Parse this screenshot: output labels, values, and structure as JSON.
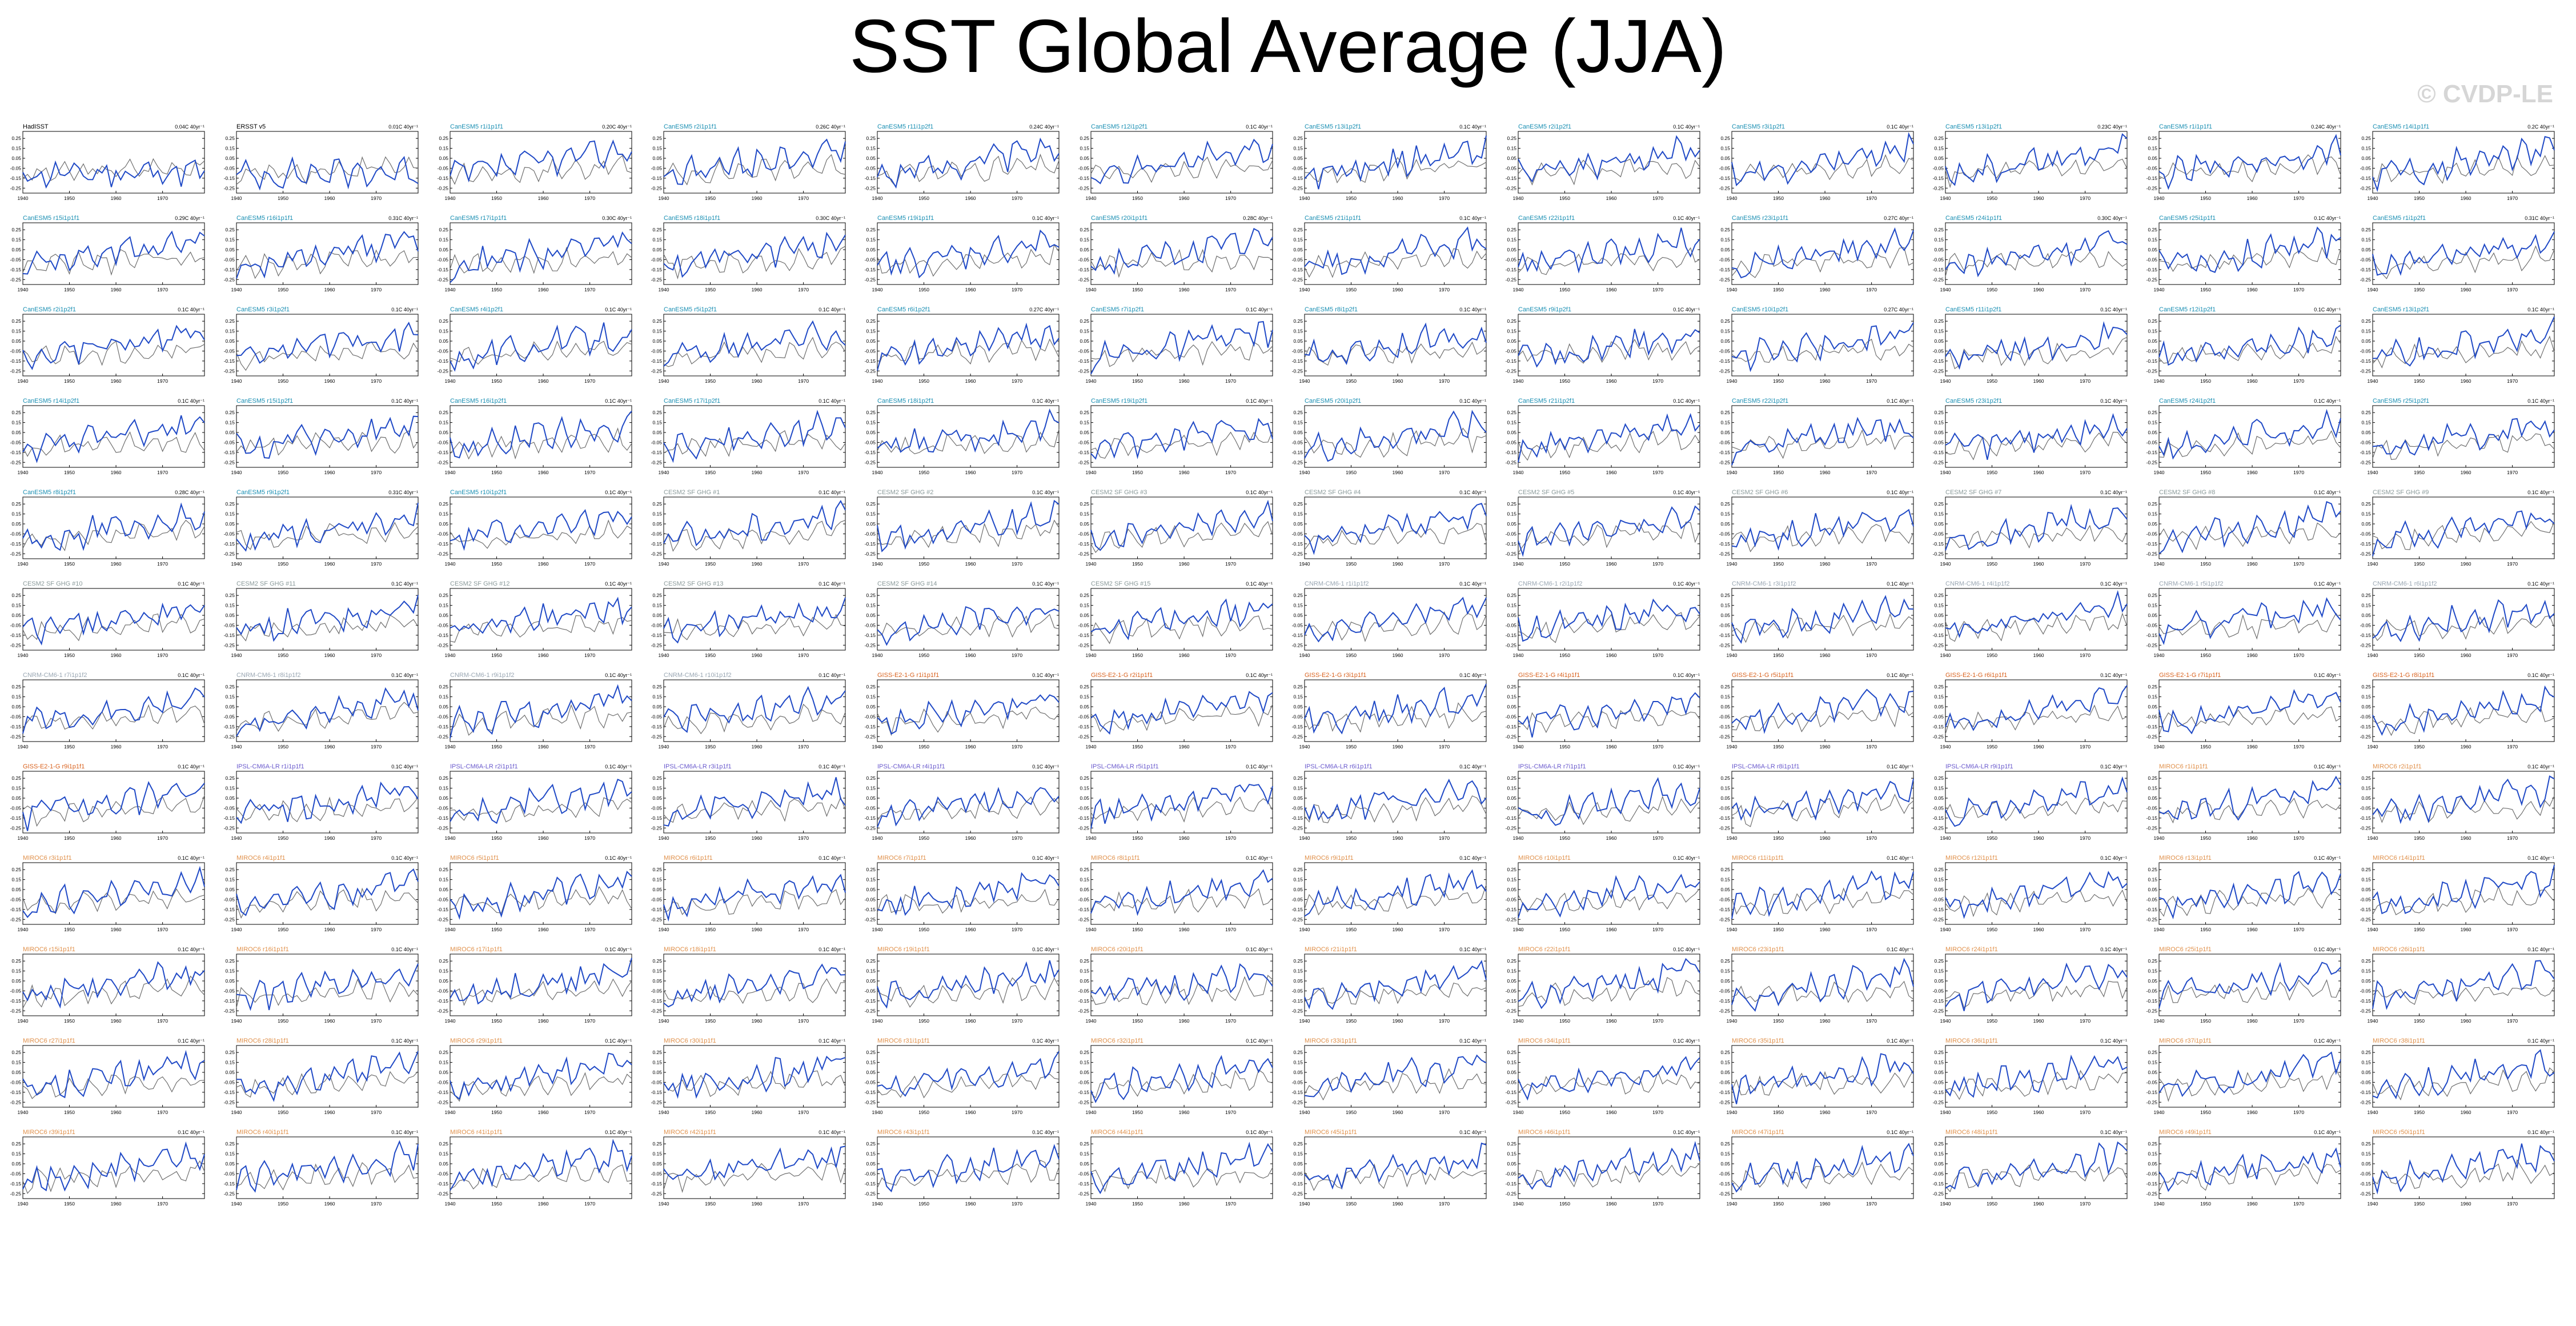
{
  "title": "SST Global Average (JJA)",
  "watermark": "© CVDP-LE",
  "colors": {
    "observation_line": "#1f49c6",
    "reference_line": "#6e6e6e",
    "frame": "#000000",
    "title_obs": "#000000",
    "title_cesm": "#1a8fb3",
    "title_cesm_sf": "#8a9a9a",
    "title_cnrm": "#9aa7b3",
    "title_giss": "#d9621e",
    "title_ipsl": "#6a5acd",
    "title_miroc": "#e0904a"
  },
  "chart_data": {
    "type": "line",
    "layout_note": "small multiples",
    "x": [
      1940,
      1941,
      1942,
      1943,
      1944,
      1945,
      1946,
      1947,
      1948,
      1949,
      1950,
      1951,
      1952,
      1953,
      1954,
      1955,
      1956,
      1957,
      1958,
      1959,
      1960,
      1961,
      1962,
      1963,
      1964,
      1965,
      1966,
      1967,
      1968,
      1969,
      1970,
      1971,
      1972,
      1973,
      1974,
      1975,
      1976,
      1977,
      1978,
      1979
    ],
    "x_ticks": [
      "1940",
      "1950",
      "1960",
      "1970"
    ],
    "y_ticks": [
      "0.25",
      "0.15",
      "0.05",
      "-0.05",
      "-0.15",
      "-0.25"
    ],
    "ylim": [
      -0.3,
      0.32
    ],
    "panels": [
      {
        "title": "HadISST",
        "trend": "0.04C 40yr⁻¹",
        "group": "obs"
      },
      {
        "title": "ERSST v5",
        "trend": "0.01C 40yr⁻¹",
        "group": "obs"
      },
      {
        "title": "CanESM5 r1i1p1f1",
        "trend": "0.20C 40yr⁻¹",
        "group": "cesm"
      },
      {
        "title": "CanESM5 r2i1p1f1",
        "trend": "0.26C 40yr⁻¹",
        "group": "cesm"
      },
      {
        "title": "CanESM5 r11i1p2f1",
        "trend": "0.24C 40yr⁻¹",
        "group": "cesm"
      },
      {
        "title": "CanESM5 r12i1p2f1",
        "trend": "0.1C 40yr⁻¹",
        "group": "cesm"
      },
      {
        "title": "CanESM5 r13i1p2f1",
        "trend": "0.1C 40yr⁻¹",
        "group": "cesm"
      },
      {
        "title": "CanESM5 r2i1p2f1",
        "trend": "0.1C 40yr⁻¹",
        "group": "cesm"
      },
      {
        "title": "CanESM5 r3i1p2f1",
        "trend": "0.1C 40yr⁻¹",
        "group": "cesm"
      },
      {
        "title": "CanESM5 r13i1p2f1",
        "trend": "0.23C 40yr⁻¹",
        "group": "cesm"
      },
      {
        "title": "CanESM5 r1i1p1f1",
        "trend": "0.24C 40yr⁻¹",
        "group": "cesm"
      },
      {
        "title": "CanESM5 r14i1p1f1",
        "trend": "0.2C 40yr⁻¹",
        "group": "cesm"
      },
      {
        "title": "CanESM5 r15i1p1f1",
        "trend": "0.29C 40yr⁻¹",
        "group": "cesm"
      },
      {
        "title": "CanESM5 r16i1p1f1",
        "trend": "0.31C 40yr⁻¹",
        "group": "cesm"
      },
      {
        "title": "CanESM5 r17i1p1f1",
        "trend": "0.30C 40yr⁻¹",
        "group": "cesm"
      },
      {
        "title": "CanESM5 r18i1p1f1",
        "trend": "0.30C 40yr⁻¹",
        "group": "cesm"
      },
      {
        "title": "CanESM5 r19i1p1f1",
        "trend": "0.1C 40yr⁻¹",
        "group": "cesm"
      },
      {
        "title": "CanESM5 r20i1p1f1",
        "trend": "0.28C 40yr⁻¹",
        "group": "cesm"
      },
      {
        "title": "CanESM5 r21i1p1f1",
        "trend": "0.1C 40yr⁻¹",
        "group": "cesm"
      },
      {
        "title": "CanESM5 r22i1p1f1",
        "trend": "0.1C 40yr⁻¹",
        "group": "cesm"
      },
      {
        "title": "CanESM5 r23i1p1f1",
        "trend": "0.27C 40yr⁻¹",
        "group": "cesm"
      },
      {
        "title": "CanESM5 r24i1p1f1",
        "trend": "0.30C 40yr⁻¹",
        "group": "cesm"
      },
      {
        "title": "CanESM5 r25i1p1f1",
        "trend": "0.1C 40yr⁻¹",
        "group": "cesm"
      },
      {
        "title": "CanESM5 r1i1p2f1",
        "trend": "0.31C 40yr⁻¹",
        "group": "cesm"
      },
      {
        "title": "CanESM5 r2i1p2f1",
        "trend": "0.1C 40yr⁻¹",
        "group": "cesm"
      },
      {
        "title": "CanESM5 r3i1p2f1",
        "trend": "0.1C 40yr⁻¹",
        "group": "cesm"
      },
      {
        "title": "CanESM5 r4i1p2f1",
        "trend": "0.1C 40yr⁻¹",
        "group": "cesm"
      },
      {
        "title": "CanESM5 r5i1p2f1",
        "trend": "0.1C 40yr⁻¹",
        "group": "cesm"
      },
      {
        "title": "CanESM5 r6i1p2f1",
        "trend": "0.27C 40yr⁻¹",
        "group": "cesm"
      },
      {
        "title": "CanESM5 r7i1p2f1",
        "trend": "0.1C 40yr⁻¹",
        "group": "cesm"
      },
      {
        "title": "CanESM5 r8i1p2f1",
        "trend": "0.1C 40yr⁻¹",
        "group": "cesm"
      },
      {
        "title": "CanESM5 r9i1p2f1",
        "trend": "0.1C 40yr⁻¹",
        "group": "cesm"
      },
      {
        "title": "CanESM5 r10i1p2f1",
        "trend": "0.27C 40yr⁻¹",
        "group": "cesm"
      },
      {
        "title": "CanESM5 r11i1p2f1",
        "trend": "0.1C 40yr⁻¹",
        "group": "cesm"
      },
      {
        "title": "CanESM5 r12i1p2f1",
        "trend": "0.1C 40yr⁻¹",
        "group": "cesm"
      },
      {
        "title": "CanESM5 r13i1p2f1",
        "trend": "0.1C 40yr⁻¹",
        "group": "cesm"
      },
      {
        "title": "CanESM5 r14i1p2f1",
        "trend": "0.1C 40yr⁻¹",
        "group": "cesm"
      },
      {
        "title": "CanESM5 r15i1p2f1",
        "trend": "0.1C 40yr⁻¹",
        "group": "cesm"
      },
      {
        "title": "CanESM5 r16i1p2f1",
        "trend": "0.1C 40yr⁻¹",
        "group": "cesm"
      },
      {
        "title": "CanESM5 r17i1p2f1",
        "trend": "0.1C 40yr⁻¹",
        "group": "cesm"
      },
      {
        "title": "CanESM5 r18i1p2f1",
        "trend": "0.1C 40yr⁻¹",
        "group": "cesm"
      },
      {
        "title": "CanESM5 r19i1p2f1",
        "trend": "0.1C 40yr⁻¹",
        "group": "cesm"
      },
      {
        "title": "CanESM5 r20i1p2f1",
        "trend": "0.1C 40yr⁻¹",
        "group": "cesm"
      },
      {
        "title": "CanESM5 r21i1p2f1",
        "trend": "0.1C 40yr⁻¹",
        "group": "cesm"
      },
      {
        "title": "CanESM5 r22i1p2f1",
        "trend": "0.1C 40yr⁻¹",
        "group": "cesm"
      },
      {
        "title": "CanESM5 r23i1p2f1",
        "trend": "0.1C 40yr⁻¹",
        "group": "cesm"
      },
      {
        "title": "CanESM5 r24i1p2f1",
        "trend": "0.1C 40yr⁻¹",
        "group": "cesm"
      },
      {
        "title": "CanESM5 r25i1p2f1",
        "trend": "0.1C 40yr⁻¹",
        "group": "cesm"
      },
      {
        "title": "CanESM5 r8i1p2f1",
        "trend": "0.28C 40yr⁻¹",
        "group": "cesm"
      },
      {
        "title": "CanESM5 r9i1p2f1",
        "trend": "0.31C 40yr⁻¹",
        "group": "cesm"
      },
      {
        "title": "CanESM5 r10i1p2f1",
        "trend": "0.1C 40yr⁻¹",
        "group": "cesm"
      },
      {
        "title": "CESM2 SF GHG #1",
        "trend": "0.1C 40yr⁻¹",
        "group": "cesm_sf"
      },
      {
        "title": "CESM2 SF GHG #2",
        "trend": "0.1C 40yr⁻¹",
        "group": "cesm_sf"
      },
      {
        "title": "CESM2 SF GHG #3",
        "trend": "0.1C 40yr⁻¹",
        "group": "cesm_sf"
      },
      {
        "title": "CESM2 SF GHG #4",
        "trend": "0.1C 40yr⁻¹",
        "group": "cesm_sf"
      },
      {
        "title": "CESM2 SF GHG #5",
        "trend": "0.1C 40yr⁻¹",
        "group": "cesm_sf"
      },
      {
        "title": "CESM2 SF GHG #6",
        "trend": "0.1C 40yr⁻¹",
        "group": "cesm_sf"
      },
      {
        "title": "CESM2 SF GHG #7",
        "trend": "0.1C 40yr⁻¹",
        "group": "cesm_sf"
      },
      {
        "title": "CESM2 SF GHG #8",
        "trend": "0.1C 40yr⁻¹",
        "group": "cesm_sf"
      },
      {
        "title": "CESM2 SF GHG #9",
        "trend": "0.1C 40yr⁻¹",
        "group": "cesm_sf"
      },
      {
        "title": "CESM2 SF GHG #10",
        "trend": "0.1C 40yr⁻¹",
        "group": "cesm_sf"
      },
      {
        "title": "CESM2 SF GHG #11",
        "trend": "0.1C 40yr⁻¹",
        "group": "cesm_sf"
      },
      {
        "title": "CESM2 SF GHG #12",
        "trend": "0.1C 40yr⁻¹",
        "group": "cesm_sf"
      },
      {
        "title": "CESM2 SF GHG #13",
        "trend": "0.1C 40yr⁻¹",
        "group": "cesm_sf"
      },
      {
        "title": "CESM2 SF GHG #14",
        "trend": "0.1C 40yr⁻¹",
        "group": "cesm_sf"
      },
      {
        "title": "CESM2 SF GHG #15",
        "trend": "0.1C 40yr⁻¹",
        "group": "cesm_sf"
      },
      {
        "title": "CNRM-CM6-1 r1i1p1f2",
        "trend": "0.1C 40yr⁻¹",
        "group": "cnrm"
      },
      {
        "title": "CNRM-CM6-1 r2i1p1f2",
        "trend": "0.1C 40yr⁻¹",
        "group": "cnrm"
      },
      {
        "title": "CNRM-CM6-1 r3i1p1f2",
        "trend": "0.1C 40yr⁻¹",
        "group": "cnrm"
      },
      {
        "title": "CNRM-CM6-1 r4i1p1f2",
        "trend": "0.1C 40yr⁻¹",
        "group": "cnrm"
      },
      {
        "title": "CNRM-CM6-1 r5i1p1f2",
        "trend": "0.1C 40yr⁻¹",
        "group": "cnrm"
      },
      {
        "title": "CNRM-CM6-1 r6i1p1f2",
        "trend": "0.1C 40yr⁻¹",
        "group": "cnrm"
      },
      {
        "title": "CNRM-CM6-1 r7i1p1f2",
        "trend": "0.1C 40yr⁻¹",
        "group": "cnrm"
      },
      {
        "title": "CNRM-CM6-1 r8i1p1f2",
        "trend": "0.1C 40yr⁻¹",
        "group": "cnrm"
      },
      {
        "title": "CNRM-CM6-1 r9i1p1f2",
        "trend": "0.1C 40yr⁻¹",
        "group": "cnrm"
      },
      {
        "title": "CNRM-CM6-1 r10i1p1f2",
        "trend": "0.1C 40yr⁻¹",
        "group": "cnrm"
      },
      {
        "title": "GISS-E2-1-G r1i1p1f1",
        "trend": "0.1C 40yr⁻¹",
        "group": "giss"
      },
      {
        "title": "GISS-E2-1-G r2i1p1f1",
        "trend": "0.1C 40yr⁻¹",
        "group": "giss"
      },
      {
        "title": "GISS-E2-1-G r3i1p1f1",
        "trend": "0.1C 40yr⁻¹",
        "group": "giss"
      },
      {
        "title": "GISS-E2-1-G r4i1p1f1",
        "trend": "0.1C 40yr⁻¹",
        "group": "giss"
      },
      {
        "title": "GISS-E2-1-G r5i1p1f1",
        "trend": "0.1C 40yr⁻¹",
        "group": "giss"
      },
      {
        "title": "GISS-E2-1-G r6i1p1f1",
        "trend": "0.1C 40yr⁻¹",
        "group": "giss"
      },
      {
        "title": "GISS-E2-1-G r7i1p1f1",
        "trend": "0.1C 40yr⁻¹",
        "group": "giss"
      },
      {
        "title": "GISS-E2-1-G r8i1p1f1",
        "trend": "0.1C 40yr⁻¹",
        "group": "giss"
      },
      {
        "title": "GISS-E2-1-G r9i1p1f1",
        "trend": "0.1C 40yr⁻¹",
        "group": "giss"
      },
      {
        "title": "IPSL-CM6A-LR r1i1p1f1",
        "trend": "0.1C 40yr⁻¹",
        "group": "ipsl"
      },
      {
        "title": "IPSL-CM6A-LR r2i1p1f1",
        "trend": "0.1C 40yr⁻¹",
        "group": "ipsl"
      },
      {
        "title": "IPSL-CM6A-LR r3i1p1f1",
        "trend": "0.1C 40yr⁻¹",
        "group": "ipsl"
      },
      {
        "title": "IPSL-CM6A-LR r4i1p1f1",
        "trend": "0.1C 40yr⁻¹",
        "group": "ipsl"
      },
      {
        "title": "IPSL-CM6A-LR r5i1p1f1",
        "trend": "0.1C 40yr⁻¹",
        "group": "ipsl"
      },
      {
        "title": "IPSL-CM6A-LR r6i1p1f1",
        "trend": "0.1C 40yr⁻¹",
        "group": "ipsl"
      },
      {
        "title": "IPSL-CM6A-LR r7i1p1f1",
        "trend": "0.1C 40yr⁻¹",
        "group": "ipsl"
      },
      {
        "title": "IPSL-CM6A-LR r8i1p1f1",
        "trend": "0.1C 40yr⁻¹",
        "group": "ipsl"
      },
      {
        "title": "IPSL-CM6A-LR r9i1p1f1",
        "trend": "0.1C 40yr⁻¹",
        "group": "ipsl"
      },
      {
        "title": "MIROC6 r1i1p1f1",
        "trend": "0.1C 40yr⁻¹",
        "group": "miroc"
      },
      {
        "title": "MIROC6 r2i1p1f1",
        "trend": "0.1C 40yr⁻¹",
        "group": "miroc"
      },
      {
        "title": "MIROC6 r3i1p1f1",
        "trend": "0.1C 40yr⁻¹",
        "group": "miroc"
      },
      {
        "title": "MIROC6 r4i1p1f1",
        "trend": "0.1C 40yr⁻¹",
        "group": "miroc"
      },
      {
        "title": "MIROC6 r5i1p1f1",
        "trend": "0.1C 40yr⁻¹",
        "group": "miroc"
      },
      {
        "title": "MIROC6 r6i1p1f1",
        "trend": "0.1C 40yr⁻¹",
        "group": "miroc"
      },
      {
        "title": "MIROC6 r7i1p1f1",
        "trend": "0.1C 40yr⁻¹",
        "group": "miroc"
      },
      {
        "title": "MIROC6 r8i1p1f1",
        "trend": "0.1C 40yr⁻¹",
        "group": "miroc"
      },
      {
        "title": "MIROC6 r9i1p1f1",
        "trend": "0.1C 40yr⁻¹",
        "group": "miroc"
      },
      {
        "title": "MIROC6 r10i1p1f1",
        "trend": "0.1C 40yr⁻¹",
        "group": "miroc"
      },
      {
        "title": "MIROC6 r11i1p1f1",
        "trend": "0.1C 40yr⁻¹",
        "group": "miroc"
      },
      {
        "title": "MIROC6 r12i1p1f1",
        "trend": "0.1C 40yr⁻¹",
        "group": "miroc"
      },
      {
        "title": "MIROC6 r13i1p1f1",
        "trend": "0.1C 40yr⁻¹",
        "group": "miroc"
      },
      {
        "title": "MIROC6 r14i1p1f1",
        "trend": "0.1C 40yr⁻¹",
        "group": "miroc"
      },
      {
        "title": "MIROC6 r15i1p1f1",
        "trend": "0.1C 40yr⁻¹",
        "group": "miroc"
      },
      {
        "title": "MIROC6 r16i1p1f1",
        "trend": "0.1C 40yr⁻¹",
        "group": "miroc"
      },
      {
        "title": "MIROC6 r17i1p1f1",
        "trend": "0.1C 40yr⁻¹",
        "group": "miroc"
      },
      {
        "title": "MIROC6 r18i1p1f1",
        "trend": "0.1C 40yr⁻¹",
        "group": "miroc"
      },
      {
        "title": "MIROC6 r19i1p1f1",
        "trend": "0.1C 40yr⁻¹",
        "group": "miroc"
      },
      {
        "title": "MIROC6 r20i1p1f1",
        "trend": "0.1C 40yr⁻¹",
        "group": "miroc"
      },
      {
        "title": "MIROC6 r21i1p1f1",
        "trend": "0.1C 40yr⁻¹",
        "group": "miroc"
      },
      {
        "title": "MIROC6 r22i1p1f1",
        "trend": "0.1C 40yr⁻¹",
        "group": "miroc"
      },
      {
        "title": "MIROC6 r23i1p1f1",
        "trend": "0.1C 40yr⁻¹",
        "group": "miroc"
      },
      {
        "title": "MIROC6 r24i1p1f1",
        "trend": "0.1C 40yr⁻¹",
        "group": "miroc"
      },
      {
        "title": "MIROC6 r25i1p1f1",
        "trend": "0.1C 40yr⁻¹",
        "group": "miroc"
      },
      {
        "title": "MIROC6 r26i1p1f1",
        "trend": "0.1C 40yr⁻¹",
        "group": "miroc"
      },
      {
        "title": "MIROC6 r27i1p1f1",
        "trend": "0.1C 40yr⁻¹",
        "group": "miroc"
      },
      {
        "title": "MIROC6 r28i1p1f1",
        "trend": "0.1C 40yr⁻¹",
        "group": "miroc"
      },
      {
        "title": "MIROC6 r29i1p1f1",
        "trend": "0.1C 40yr⁻¹",
        "group": "miroc"
      },
      {
        "title": "MIROC6 r30i1p1f1",
        "trend": "0.1C 40yr⁻¹",
        "group": "miroc"
      },
      {
        "title": "MIROC6 r31i1p1f1",
        "trend": "0.1C 40yr⁻¹",
        "group": "miroc"
      },
      {
        "title": "MIROC6 r32i1p1f1",
        "trend": "0.1C 40yr⁻¹",
        "group": "miroc"
      },
      {
        "title": "MIROC6 r33i1p1f1",
        "trend": "0.1C 40yr⁻¹",
        "group": "miroc"
      },
      {
        "title": "MIROC6 r34i1p1f1",
        "trend": "0.1C 40yr⁻¹",
        "group": "miroc"
      },
      {
        "title": "MIROC6 r35i1p1f1",
        "trend": "0.1C 40yr⁻¹",
        "group": "miroc"
      },
      {
        "title": "MIROC6 r36i1p1f1",
        "trend": "0.1C 40yr⁻¹",
        "group": "miroc"
      },
      {
        "title": "MIROC6 r37i1p1f1",
        "trend": "0.1C 40yr⁻¹",
        "group": "miroc"
      },
      {
        "title": "MIROC6 r38i1p1f1",
        "trend": "0.1C 40yr⁻¹",
        "group": "miroc"
      },
      {
        "title": "MIROC6 r39i1p1f1",
        "trend": "0.1C 40yr⁻¹",
        "group": "miroc"
      },
      {
        "title": "MIROC6 r40i1p1f1",
        "trend": "0.1C 40yr⁻¹",
        "group": "miroc"
      },
      {
        "title": "MIROC6 r41i1p1f1",
        "trend": "0.1C 40yr⁻¹",
        "group": "miroc"
      },
      {
        "title": "MIROC6 r42i1p1f1",
        "trend": "0.1C 40yr⁻¹",
        "group": "miroc"
      },
      {
        "title": "MIROC6 r43i1p1f1",
        "trend": "0.1C 40yr⁻¹",
        "group": "miroc"
      },
      {
        "title": "MIROC6 r44i1p1f1",
        "trend": "0.1C 40yr⁻¹",
        "group": "miroc"
      },
      {
        "title": "MIROC6 r45i1p1f1",
        "trend": "0.1C 40yr⁻¹",
        "group": "miroc"
      },
      {
        "title": "MIROC6 r46i1p1f1",
        "trend": "0.1C 40yr⁻¹",
        "group": "miroc"
      },
      {
        "title": "MIROC6 r47i1p1f1",
        "trend": "0.1C 40yr⁻¹",
        "group": "miroc"
      },
      {
        "title": "MIROC6 r48i1p1f1",
        "trend": "0.1C 40yr⁻¹",
        "group": "miroc"
      },
      {
        "title": "MIROC6 r49i1p1f1",
        "trend": "0.1C 40yr⁻¹",
        "group": "miroc"
      },
      {
        "title": "MIROC6 r50i1p1f1",
        "trend": "0.1C 40yr⁻¹",
        "group": "miroc"
      }
    ]
  }
}
